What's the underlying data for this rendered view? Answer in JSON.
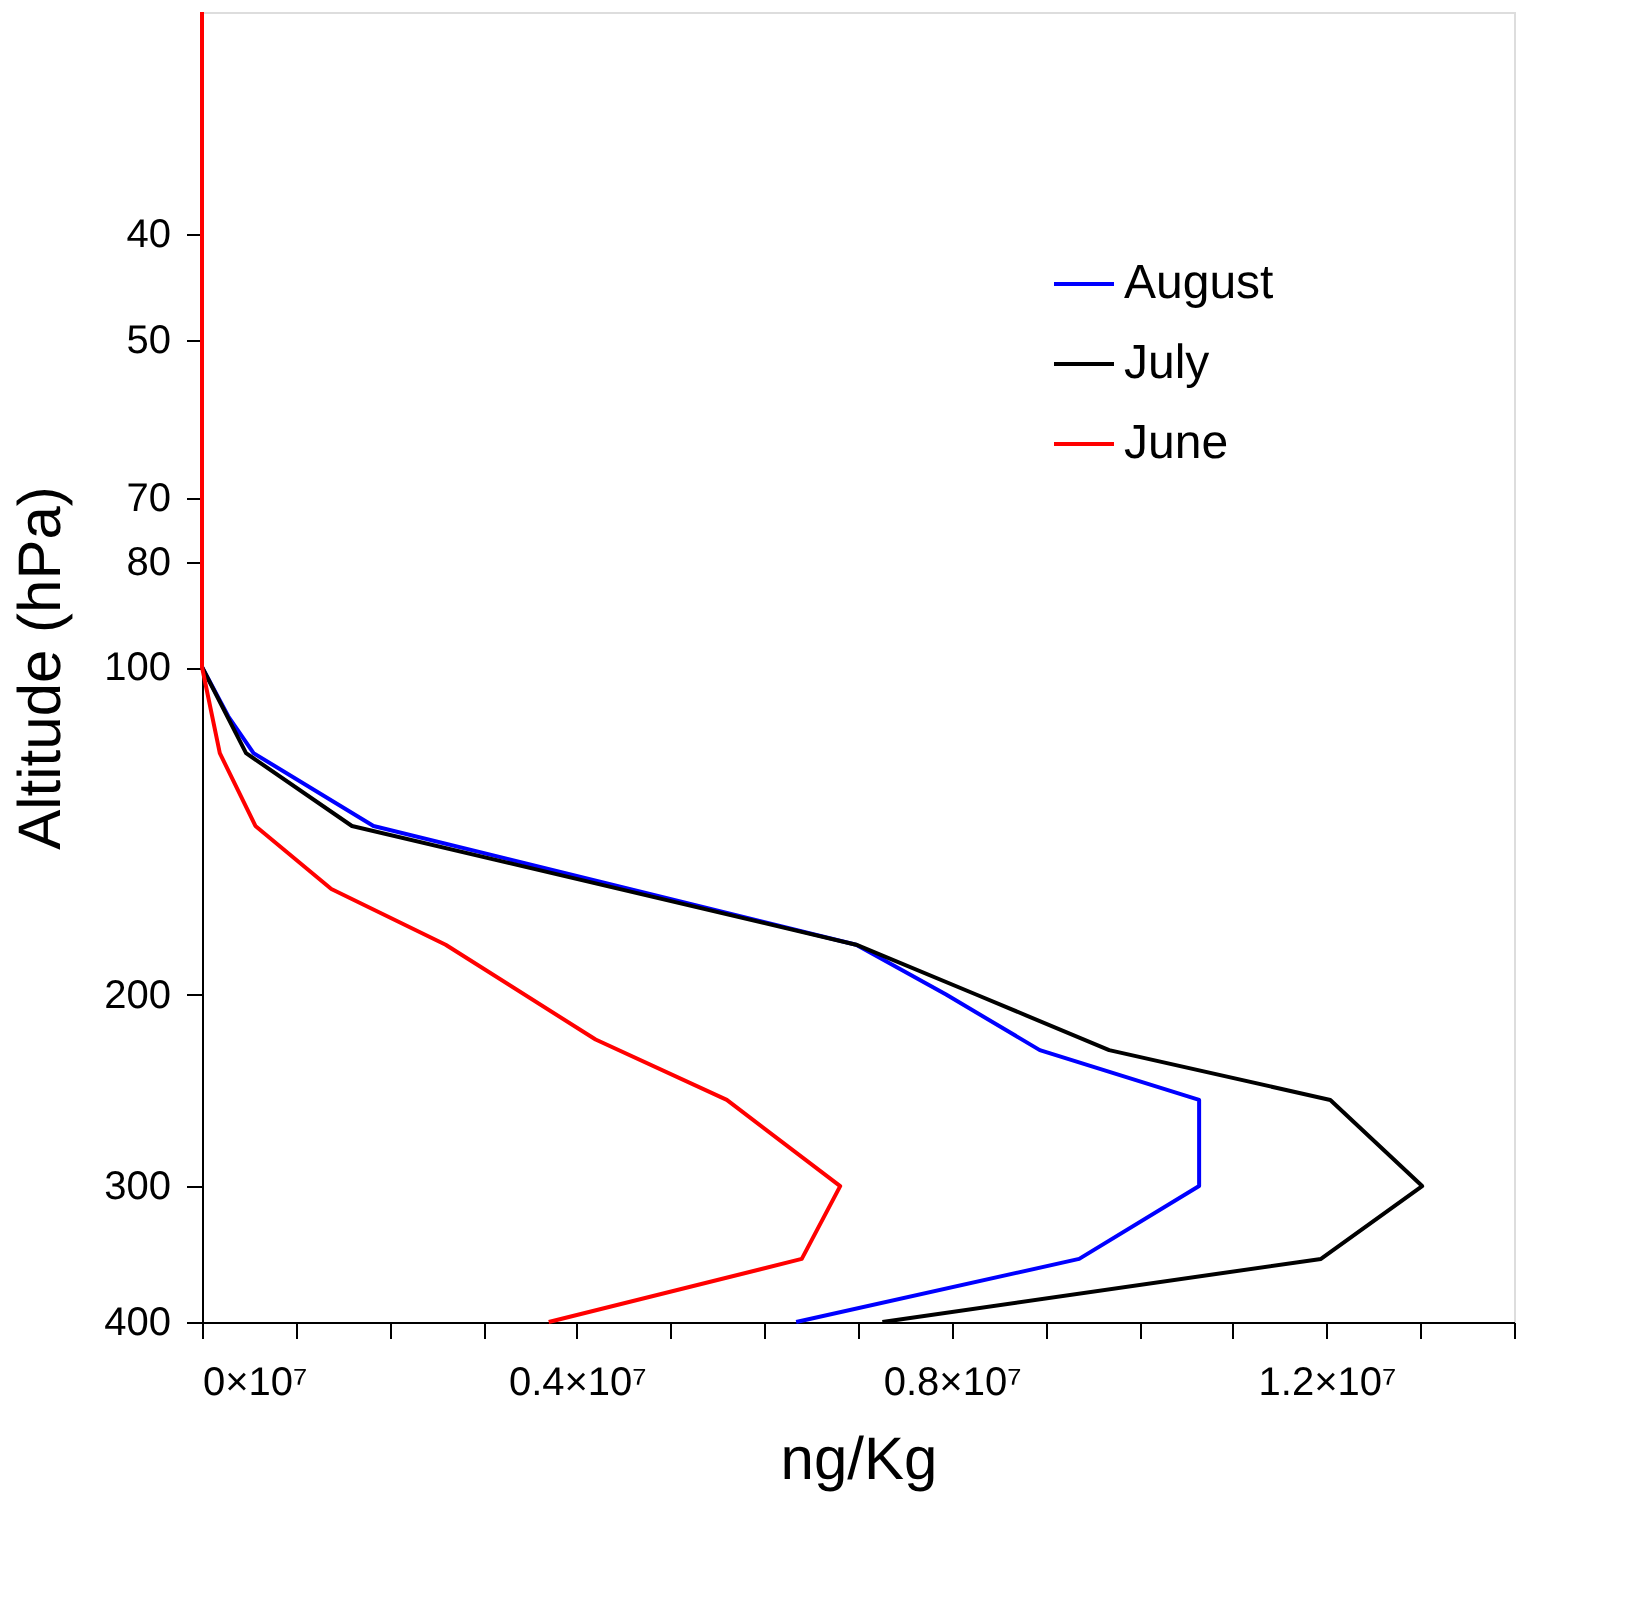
{
  "chart_data": {
    "type": "line",
    "xlabel": "ng/Kg",
    "ylabel": "Altitude (hPa)",
    "log": "y",
    "legend": "top right",
    "grid": false,
    "marker": "none",
    "line_style": "solid",
    "xlim": [
      0,
      14000000
    ],
    "ylim": [
      400,
      25
    ],
    "xticks": [
      {
        "value": 0,
        "label": "0×10⁷"
      },
      {
        "value": 1000000,
        "label": null
      },
      {
        "value": 2000000,
        "label": null
      },
      {
        "value": 3000000,
        "label": null
      },
      {
        "value": 4000000,
        "label": "0.4×10⁷"
      },
      {
        "value": 5000000,
        "label": null
      },
      {
        "value": 6000000,
        "label": null
      },
      {
        "value": 7000000,
        "label": null
      },
      {
        "value": 8000000,
        "label": "0.8×10⁷"
      },
      {
        "value": 9000000,
        "label": null
      },
      {
        "value": 10000000,
        "label": null
      },
      {
        "value": 11000000,
        "label": null
      },
      {
        "value": 12000000,
        "label": "1.2×10⁷"
      },
      {
        "value": 13000000,
        "label": null
      },
      {
        "value": 14000000,
        "label": null
      }
    ],
    "yticks": [
      40,
      50,
      70,
      80,
      100,
      200,
      300,
      400
    ],
    "series": [
      {
        "name": "August",
        "color": "#0000ff",
        "values": [
          400,
          350,
          300,
          250,
          225,
          200,
          180,
          140,
          120,
          111,
          100,
          25
        ],
        "x": [
          6340000,
          9360000,
          10640000,
          10640000,
          8940000,
          7940000,
          6980000,
          1830000,
          550000,
          280000,
          0,
          0
        ]
      },
      {
        "name": "July",
        "color": "#000000",
        "values": [
          400,
          350,
          300,
          250,
          225,
          200,
          180,
          140,
          120,
          100,
          25
        ],
        "x": [
          7260000,
          11940000,
          13020000,
          12040000,
          9680000,
          8260000,
          6980000,
          1600000,
          470000,
          0,
          0
        ]
      },
      {
        "name": "June",
        "color": "#ff0000",
        "values": [
          400,
          350,
          300,
          250,
          220,
          180,
          160,
          140,
          120,
          100,
          25
        ],
        "x": [
          3700000,
          6400000,
          6810000,
          5600000,
          4200000,
          2600000,
          1380000,
          570000,
          190000,
          0,
          0
        ]
      }
    ]
  }
}
